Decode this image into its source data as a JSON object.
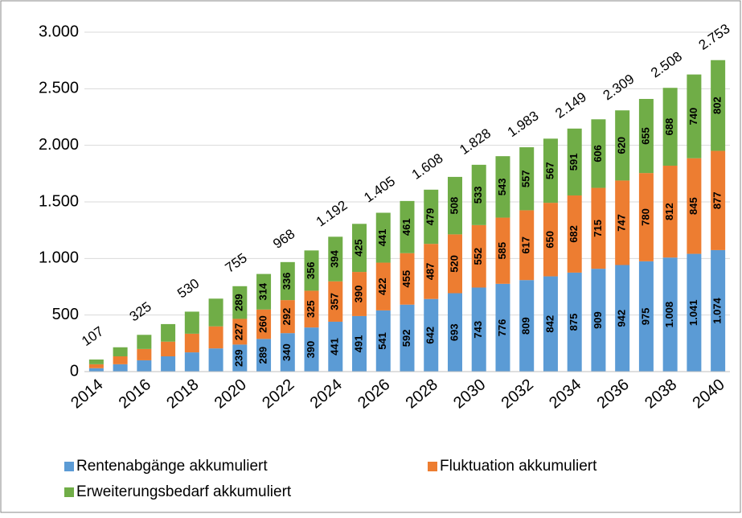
{
  "chart_data": {
    "type": "stacked_bar",
    "categories": [
      "2014",
      null,
      "2016",
      null,
      "2018",
      null,
      "2020",
      null,
      "2022",
      null,
      "2024",
      null,
      "2026",
      null,
      "2028",
      null,
      "2030",
      null,
      "2032",
      null,
      "2034",
      null,
      "2036",
      null,
      "2038",
      null,
      "2040"
    ],
    "series": [
      {
        "name": "Rentenabgänge akkumuliert",
        "color": "#5b9bd5",
        "values": [
          30,
          65,
          100,
          135,
          170,
          205,
          239,
          289,
          340,
          390,
          441,
          491,
          541,
          592,
          642,
          693,
          743,
          776,
          809,
          842,
          875,
          909,
          942,
          975,
          1008,
          1041,
          1074
        ],
        "value_labels": [
          null,
          null,
          null,
          null,
          null,
          null,
          "239",
          "289",
          "340",
          "390",
          "441",
          "491",
          "541",
          "592",
          "642",
          "693",
          "743",
          "776",
          "809",
          "842",
          "875",
          "909",
          "942",
          "975",
          "1.008",
          "1.041",
          "1.074"
        ]
      },
      {
        "name": "Fluktuation akkumuliert",
        "color": "#ed7d31",
        "values": [
          35,
          70,
          100,
          130,
          165,
          195,
          227,
          260,
          292,
          325,
          357,
          390,
          422,
          455,
          487,
          520,
          552,
          585,
          617,
          650,
          682,
          715,
          747,
          780,
          812,
          845,
          877
        ],
        "value_labels": [
          null,
          null,
          null,
          null,
          null,
          null,
          "227",
          "260",
          "292",
          "325",
          "357",
          "390",
          "422",
          "455",
          "487",
          "520",
          "552",
          "585",
          "617",
          "650",
          "682",
          "715",
          "747",
          "780",
          "812",
          "845",
          "877"
        ]
      },
      {
        "name": "Erweiterungsbedarf akkumuliert",
        "color": "#70ad47",
        "values": [
          42,
          80,
          125,
          155,
          195,
          245,
          289,
          314,
          336,
          356,
          394,
          425,
          441,
          461,
          479,
          508,
          533,
          543,
          557,
          567,
          591,
          606,
          620,
          655,
          688,
          740,
          802
        ],
        "value_labels": [
          null,
          null,
          null,
          null,
          null,
          null,
          "289",
          "314",
          "336",
          "356",
          "394",
          "425",
          "441",
          "461",
          "479",
          "508",
          "533",
          "543",
          "557",
          "567",
          "591",
          "606",
          "620",
          "655",
          "688",
          "740",
          "802"
        ]
      }
    ],
    "totals": {
      "values": [
        107,
        null,
        325,
        null,
        530,
        null,
        755,
        null,
        968,
        null,
        1192,
        null,
        1405,
        null,
        1608,
        null,
        1828,
        null,
        1983,
        null,
        2149,
        null,
        2309,
        null,
        2508,
        null,
        2753
      ],
      "labels": [
        "107",
        null,
        "325",
        null,
        "530",
        null,
        "755",
        null,
        "968",
        null,
        "1.192",
        null,
        "1.405",
        null,
        "1.608",
        null,
        "1.828",
        null,
        "1.983",
        null,
        "2.149",
        null,
        "2.309",
        null,
        "2.508",
        null,
        "2.753"
      ]
    },
    "ylim": [
      0,
      3000
    ],
    "yticks": [
      0,
      500,
      {
        "value": 1000,
        "label": "1.000"
      },
      {
        "value": 1500,
        "label": "1.500"
      },
      {
        "value": 2000,
        "label": "2.000"
      },
      {
        "value": 2500,
        "label": "2.500"
      },
      {
        "value": 3000,
        "label": "3.000"
      }
    ],
    "grid": true,
    "legend": "bottom"
  }
}
